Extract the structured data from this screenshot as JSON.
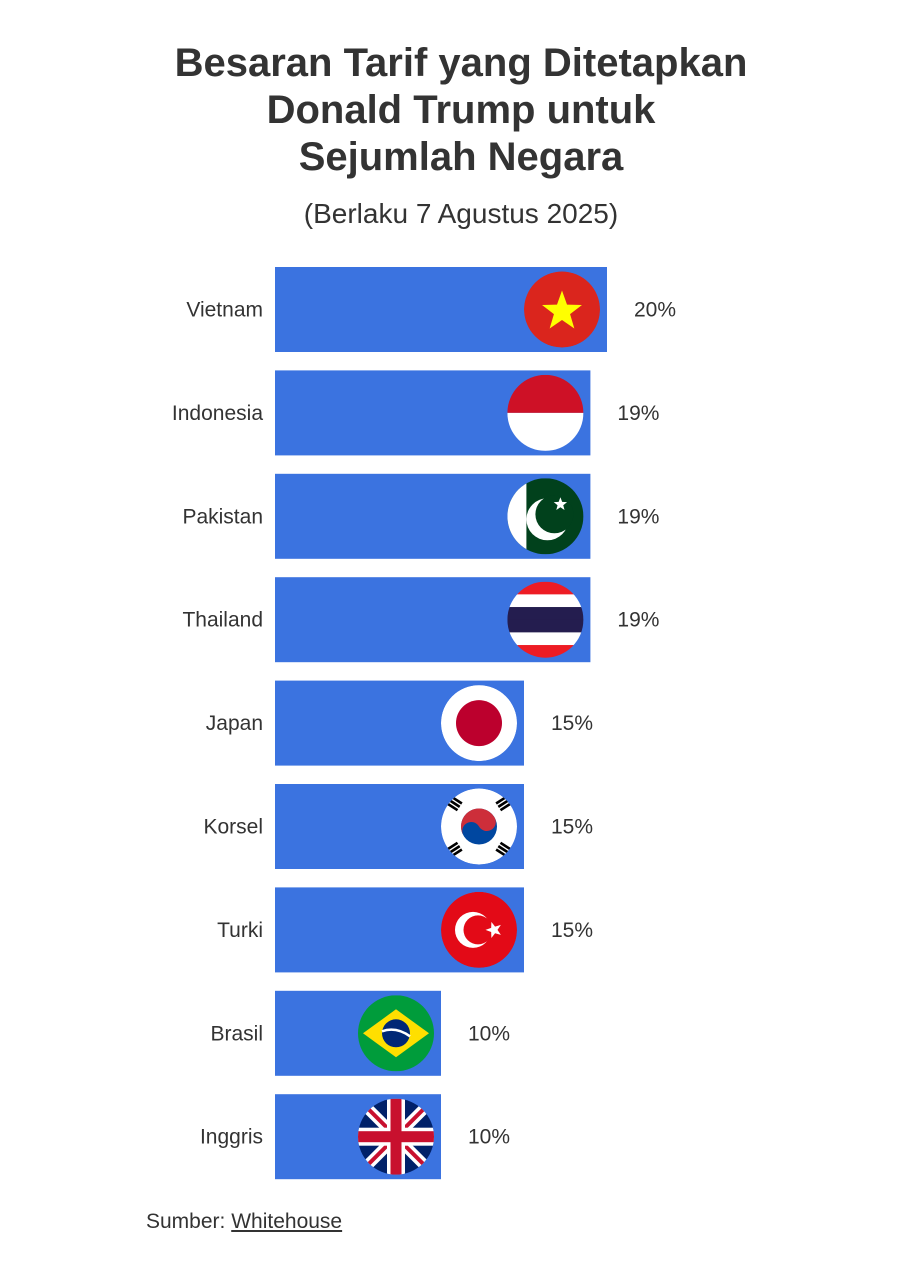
{
  "title": {
    "line1": "Besaran Tarif yang Ditetapkan",
    "line2": "Donald Trump untuk",
    "line3": "Sejumlah Negara"
  },
  "subtitle": "(Berlaku 7 Agustus 2025)",
  "source": {
    "label": "Sumber:",
    "link_text": "Whitehouse"
  },
  "colors": {
    "bar": "#3b73e0",
    "text": "#333333"
  },
  "chart_data": {
    "type": "bar",
    "orientation": "horizontal",
    "categories": [
      "Vietnam",
      "Indonesia",
      "Pakistan",
      "Thailand",
      "Japan",
      "Korsel",
      "Turki",
      "Brasil",
      "Inggris"
    ],
    "values": [
      20,
      19,
      19,
      19,
      15,
      15,
      15,
      10,
      10
    ],
    "value_labels": [
      "20%",
      "19%",
      "19%",
      "19%",
      "15%",
      "15%",
      "15%",
      "10%",
      "10%"
    ],
    "flag_icons": [
      "vietnam-flag-icon",
      "indonesia-flag-icon",
      "pakistan-flag-icon",
      "thailand-flag-icon",
      "japan-flag-icon",
      "south-korea-flag-icon",
      "turkey-flag-icon",
      "brazil-flag-icon",
      "uk-flag-icon"
    ],
    "xlim": [
      0,
      20
    ],
    "grid": false,
    "legend": false
  }
}
